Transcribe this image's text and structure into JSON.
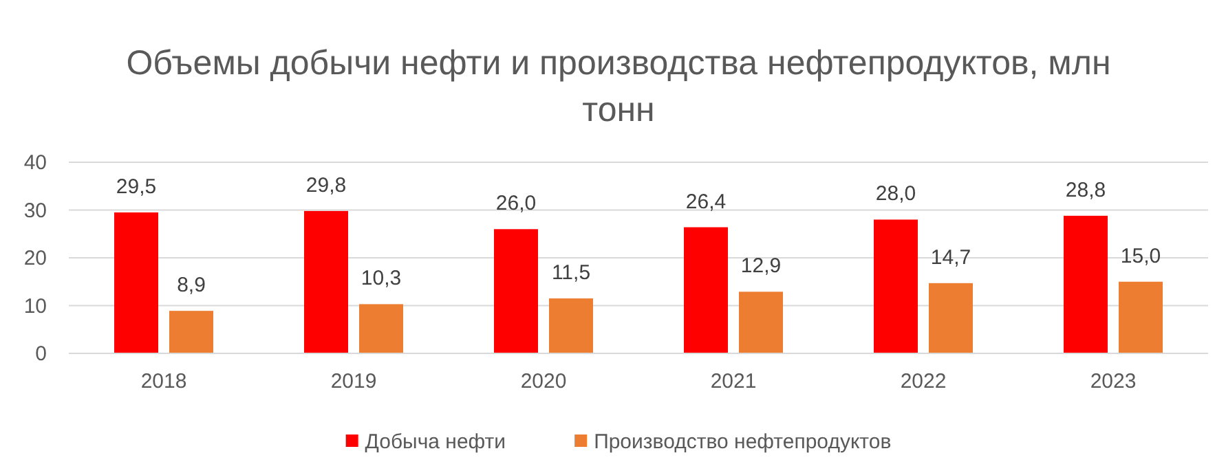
{
  "chart_data": {
    "type": "bar",
    "title": "Объемы добычи нефти и производства нефтепродуктов, млн тонн",
    "categories": [
      "2018",
      "2019",
      "2020",
      "2021",
      "2022",
      "2023"
    ],
    "series": [
      {
        "name": "Добыча нефти",
        "color": "#ff0000",
        "values": [
          29.5,
          29.8,
          26.0,
          26.4,
          28.0,
          28.8
        ],
        "value_labels": [
          "29,5",
          "29,8",
          "26,0",
          "26,4",
          "28,0",
          "28,8"
        ]
      },
      {
        "name": "Производство нефтепродуктов",
        "color": "#ed7d31",
        "values": [
          8.9,
          10.3,
          11.5,
          12.9,
          14.7,
          15.0
        ],
        "value_labels": [
          "8,9",
          "10,3",
          "11,5",
          "12,9",
          "14,7",
          "15,0"
        ]
      }
    ],
    "ylim": [
      0,
      40
    ],
    "yticks": [
      0,
      10,
      20,
      30,
      40
    ],
    "grid": "y",
    "legend": "bottom"
  }
}
